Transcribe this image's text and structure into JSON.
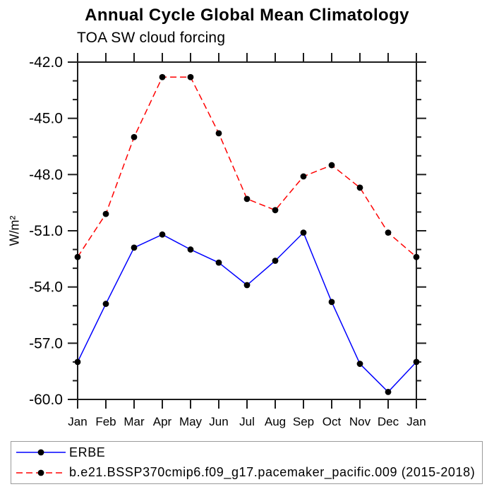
{
  "chart_data": {
    "type": "line",
    "title": "Annual Cycle Global Mean Climatology",
    "subtitle": "TOA SW cloud forcing",
    "ylabel": "W/m²",
    "xlabel": "",
    "categories": [
      "Jan",
      "Feb",
      "Mar",
      "Apr",
      "May",
      "Jun",
      "Jul",
      "Aug",
      "Sep",
      "Oct",
      "Nov",
      "Dec",
      "Jan"
    ],
    "ylim": [
      -60.0,
      -42.0
    ],
    "ytick_major": [
      -42.0,
      -45.0,
      -48.0,
      -51.0,
      -54.0,
      -57.0,
      -60.0
    ],
    "ytick_labels": [
      "-42.0",
      "-45.0",
      "-48.0",
      "-51.0",
      "-54.0",
      "-57.0",
      "-60.0"
    ],
    "minor_tick_interval": 1.0,
    "grid": false,
    "legend_position": "bottom",
    "axis_color": "#1c1c1c",
    "marker_color": "#000000",
    "series": [
      {
        "name": "ERBE",
        "color": "#0000ff",
        "style": "solid",
        "marker": "circle",
        "values": [
          -58.0,
          -54.9,
          -51.9,
          -51.2,
          -52.0,
          -52.7,
          -53.9,
          -52.6,
          -51.1,
          -54.8,
          -58.1,
          -59.6,
          -58.0
        ]
      },
      {
        "name": "b.e21.BSSP370cmip6.f09_g17.pacemaker_pacific.009 (2015-2018)",
        "color": "#ff0000",
        "style": "dashed",
        "marker": "circle",
        "values": [
          -52.4,
          -50.1,
          -46.0,
          -42.8,
          -42.8,
          -45.8,
          -49.3,
          -49.9,
          -48.1,
          -47.5,
          -48.7,
          -51.1,
          -52.4
        ]
      }
    ]
  }
}
